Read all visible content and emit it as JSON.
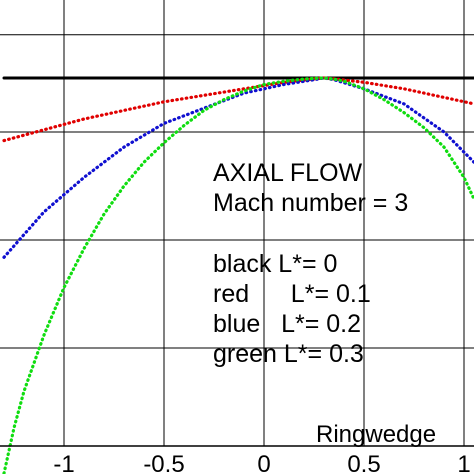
{
  "chart_data": {
    "type": "scatter",
    "xlabel": "Ringwedge",
    "ylabel": "",
    "xlim": [
      -1.3,
      1.05
    ],
    "ylim": [
      -1.83,
      0.08
    ],
    "grid": true,
    "x_tick_labels": [
      "-1",
      "-0.5",
      "0",
      "0.5",
      "1"
    ],
    "annotations": [
      "AXIAL FLOW",
      "Mach number = 3",
      "black L*= 0",
      "red      L*= 0.1",
      "blue   L*= 0.2",
      "green L*= 0.3"
    ],
    "series": [
      {
        "name": "black L*= 0",
        "color": "#000000",
        "x": [
          -1.3,
          -1.1,
          -0.9,
          -0.7,
          -0.5,
          -0.3,
          -0.1,
          0.1,
          0.3,
          0.5,
          0.7,
          0.9,
          1.05
        ],
        "y": [
          0,
          0,
          0,
          0,
          0,
          0,
          0,
          0,
          0,
          0,
          0,
          0,
          0
        ]
      },
      {
        "name": "red L*= 0.1",
        "color": "#e00000",
        "x": [
          -1.3,
          -1.1,
          -0.9,
          -0.7,
          -0.5,
          -0.3,
          -0.1,
          0.1,
          0.25,
          0.3,
          0.35,
          0.5,
          0.7,
          0.9,
          1.05
        ],
        "y": [
          -0.29,
          -0.24,
          -0.19,
          -0.15,
          -0.11,
          -0.08,
          -0.05,
          -0.02,
          -0.004,
          0,
          -0.004,
          -0.02,
          -0.05,
          -0.09,
          -0.12
        ]
      },
      {
        "name": "blue L*= 0.2",
        "color": "#1010d0",
        "x": [
          -1.3,
          -1.1,
          -0.9,
          -0.7,
          -0.5,
          -0.3,
          -0.1,
          0.1,
          0.25,
          0.3,
          0.35,
          0.5,
          0.7,
          0.9,
          1.05
        ],
        "y": [
          -0.83,
          -0.62,
          -0.46,
          -0.32,
          -0.21,
          -0.14,
          -0.07,
          -0.03,
          -0.008,
          0,
          -0.008,
          -0.05,
          -0.12,
          -0.25,
          -0.39
        ]
      },
      {
        "name": "green L*= 0.3",
        "color": "#10dd10",
        "x": [
          -1.3,
          -1.25,
          -1.2,
          -1.1,
          -1.0,
          -0.9,
          -0.8,
          -0.7,
          -0.6,
          -0.5,
          -0.4,
          -0.3,
          -0.2,
          -0.1,
          0.0,
          0.1,
          0.2,
          0.25,
          0.3,
          0.35,
          0.4,
          0.5,
          0.6,
          0.7,
          0.8,
          0.9,
          1.0,
          1.05
        ],
        "y": [
          -1.83,
          -1.62,
          -1.45,
          -1.19,
          -0.97,
          -0.79,
          -0.63,
          -0.5,
          -0.39,
          -0.3,
          -0.22,
          -0.15,
          -0.1,
          -0.06,
          -0.03,
          -0.015,
          -0.005,
          -0.002,
          0,
          -0.005,
          -0.015,
          -0.05,
          -0.1,
          -0.16,
          -0.23,
          -0.32,
          -0.46,
          -0.56
        ]
      }
    ]
  }
}
